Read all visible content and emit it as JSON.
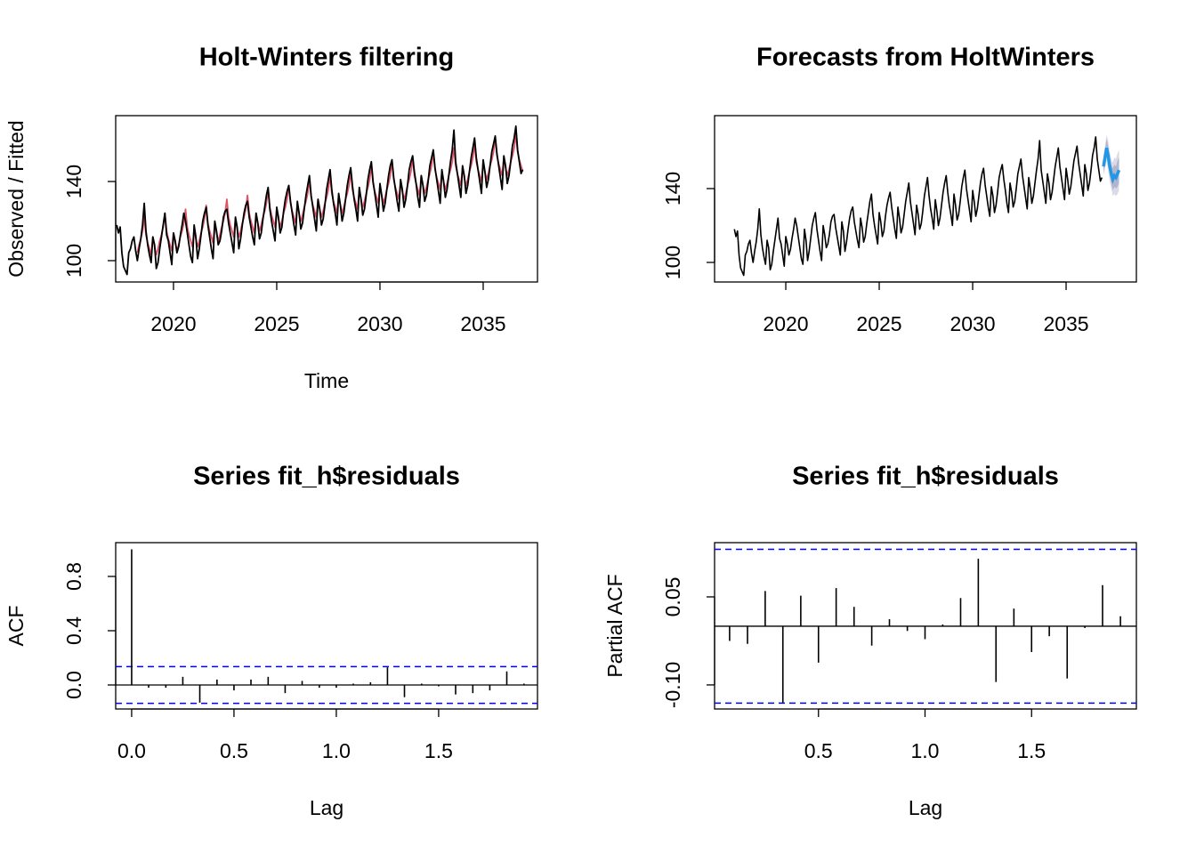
{
  "chart_data": [
    {
      "type": "line",
      "title": "Holt-Winters filtering",
      "xlabel": "Time",
      "ylabel": "Observed / Fitted",
      "xlim": [
        2017.2,
        2037.63
      ],
      "ylim": [
        89.2,
        173.3
      ],
      "xticks": [
        2020,
        2025,
        2030,
        2035
      ],
      "yticks": [
        100,
        140
      ],
      "series": [
        {
          "color": "#000000",
          "start": 2017.25,
          "frequency": 12,
          "values": [
            118,
            114,
            117,
            104,
            97,
            95,
            93,
            104,
            106,
            110,
            112,
            105,
            100,
            106,
            111,
            118,
            129,
            115,
            108,
            103,
            99,
            112,
            108,
            96,
            99,
            106,
            112,
            118,
            124,
            113,
            110,
            104,
            98,
            114,
            110,
            104,
            107,
            113,
            118,
            124,
            120,
            114,
            108,
            102,
            99,
            118,
            112,
            101,
            106,
            113,
            120,
            124,
            127,
            118,
            112,
            106,
            101,
            120,
            115,
            108,
            110,
            115,
            122,
            125,
            126,
            119,
            114,
            109,
            104,
            122,
            117,
            106,
            111,
            118,
            124,
            128,
            130,
            122,
            117,
            112,
            108,
            124,
            119,
            111,
            114,
            121,
            127,
            133,
            137,
            126,
            120,
            115,
            110,
            127,
            122,
            114,
            117,
            125,
            131,
            135,
            138,
            130,
            124,
            118,
            113,
            130,
            124,
            116,
            119,
            126,
            133,
            138,
            143,
            133,
            127,
            121,
            115,
            131,
            126,
            118,
            121,
            128,
            136,
            141,
            146,
            136,
            129,
            124,
            118,
            134,
            128,
            120,
            124,
            131,
            138,
            143,
            147,
            138,
            131,
            126,
            120,
            137,
            131,
            123,
            126,
            133,
            141,
            146,
            150,
            140,
            134,
            128,
            122,
            139,
            133,
            125,
            129,
            136,
            143,
            148,
            151,
            142,
            136,
            130,
            125,
            141,
            136,
            127,
            131,
            138,
            146,
            150,
            153,
            145,
            139,
            132,
            127,
            143,
            138,
            130,
            133,
            140,
            148,
            152,
            156,
            147,
            141,
            135,
            129,
            146,
            140,
            132,
            136,
            143,
            150,
            156,
            166,
            150,
            144,
            138,
            132,
            148,
            143,
            134,
            138,
            145,
            152,
            157,
            162,
            152,
            146,
            140,
            134,
            151,
            145,
            137,
            141,
            148,
            155,
            159,
            163,
            154,
            148,
            142,
            136,
            153,
            148,
            139,
            143,
            150,
            158,
            162,
            168,
            156,
            150,
            144,
            146
          ]
        },
        {
          "color": "#DF536B",
          "start": 2018.25,
          "frequency": 12,
          "values": [
            104,
            108,
            111,
            115,
            122,
            113,
            109,
            106,
            103,
            112,
            107,
            103,
            106,
            110,
            113,
            117,
            124,
            115,
            111,
            108,
            105,
            114,
            109,
            105,
            108,
            112,
            115,
            119,
            126,
            117,
            113,
            110,
            107,
            116,
            111,
            107,
            110,
            114,
            117,
            121,
            128,
            119,
            115,
            112,
            109,
            119,
            114,
            110,
            113,
            117,
            120,
            124,
            131,
            122,
            118,
            115,
            112,
            121,
            116,
            112,
            115,
            119,
            122,
            126,
            133,
            124,
            120,
            117,
            114,
            124,
            119,
            115,
            118,
            122,
            125,
            129,
            136,
            127,
            123,
            120,
            117,
            126,
            121,
            117,
            120,
            124,
            127,
            131,
            138,
            129,
            125,
            122,
            119,
            129,
            124,
            120,
            123,
            127,
            130,
            134,
            141,
            132,
            128,
            125,
            122,
            131,
            126,
            122,
            125,
            129,
            132,
            136,
            143,
            134,
            130,
            127,
            124,
            133,
            128,
            124,
            127,
            131,
            134,
            138,
            145,
            136,
            132,
            129,
            126,
            136,
            131,
            127,
            130,
            134,
            137,
            141,
            148,
            139,
            135,
            132,
            129,
            138,
            133,
            129,
            132,
            136,
            139,
            143,
            150,
            141,
            137,
            134,
            131,
            140,
            135,
            131,
            134,
            138,
            141,
            145,
            152,
            143,
            139,
            136,
            133,
            143,
            138,
            134,
            137,
            141,
            144,
            148,
            155,
            146,
            142,
            139,
            136,
            145,
            140,
            136,
            139,
            143,
            146,
            150,
            157,
            148,
            144,
            141,
            138,
            147,
            142,
            138,
            141,
            145,
            148,
            152,
            159,
            150,
            146,
            143,
            140,
            150,
            145,
            141,
            144,
            148,
            151,
            155,
            162,
            153,
            149,
            146,
            143,
            152,
            147,
            143,
            146,
            150,
            153,
            157,
            164,
            155,
            151,
            148,
            145
          ]
        }
      ]
    },
    {
      "type": "forecast",
      "title": "Forecasts from HoltWinters",
      "xlim": [
        2016.19,
        2038.76
      ],
      "ylim": [
        89.4,
        179.5
      ],
      "xticks": [
        2020,
        2025,
        2030,
        2035
      ],
      "yticks": [
        100,
        140
      ],
      "forecast": {
        "start": 2037.0,
        "frequency": 12,
        "color": "#2297E6",
        "band80_color": "#B1B5CE",
        "band95_color": "#DBDBE8",
        "mean": [
          152,
          157,
          162,
          158,
          152,
          148,
          145,
          147,
          146,
          148,
          150
        ],
        "lower80": [
          149,
          153,
          157,
          153,
          147,
          143,
          139,
          141,
          140,
          141,
          143
        ],
        "upper80": [
          155,
          161,
          167,
          163,
          157,
          153,
          151,
          153,
          152,
          155,
          157
        ],
        "lower95": [
          147,
          151,
          155,
          150,
          144,
          140,
          136,
          137,
          136,
          137,
          139
        ],
        "upper95": [
          157,
          163,
          169,
          166,
          160,
          156,
          154,
          157,
          156,
          159,
          161
        ]
      }
    },
    {
      "type": "acf",
      "title": "Series  fit_h$residuals",
      "xlabel": "Lag",
      "ylabel": "ACF",
      "xlim": [
        -0.078,
        1.983
      ],
      "ylim": [
        -0.177,
        1.049
      ],
      "xticks": [
        {
          "value": 0,
          "label": "0.0"
        },
        0.5,
        {
          "value": 1,
          "label": "1.0"
        },
        1.5
      ],
      "yticks": [
        {
          "value": 0,
          "label": "0.0"
        },
        0.4,
        0.8
      ],
      "ci": 0.135,
      "ci_color": "#0000FF",
      "lags": [
        0,
        0.083,
        0.167,
        0.25,
        0.333,
        0.417,
        0.5,
        0.583,
        0.667,
        0.75,
        0.833,
        0.917,
        1,
        1.083,
        1.167,
        1.25,
        1.333,
        1.417,
        1.5,
        1.583,
        1.667,
        1.75,
        1.833,
        1.917
      ],
      "values": [
        1.0,
        -0.02,
        -0.02,
        0.06,
        -0.13,
        0.04,
        -0.04,
        0.04,
        0.06,
        -0.06,
        0.03,
        -0.02,
        -0.02,
        0.01,
        0.02,
        0.13,
        -0.09,
        0.01,
        -0.01,
        -0.07,
        -0.06,
        -0.04,
        0.1,
        0.01
      ]
    },
    {
      "type": "pacf",
      "title": "Series  fit_h$residuals",
      "xlabel": "Lag",
      "ylabel": "Partial ACF",
      "xlim": [
        0.0125,
        1.9917
      ],
      "ylim": [
        -0.141,
        0.1424
      ],
      "xticks": [
        0.5,
        {
          "value": 1,
          "label": "1.0"
        },
        1.5
      ],
      "yticks": [
        {
          "value": -0.1,
          "label": "-0.10"
        },
        0.05
      ],
      "ci": 0.131,
      "ci_color": "#0000FF",
      "lags": [
        0.083,
        0.167,
        0.25,
        0.333,
        0.417,
        0.5,
        0.583,
        0.667,
        0.75,
        0.833,
        0.917,
        1,
        1.083,
        1.167,
        1.25,
        1.333,
        1.417,
        1.5,
        1.583,
        1.667,
        1.75,
        1.833,
        1.917
      ],
      "values": [
        -0.025,
        -0.03,
        0.06,
        -0.13,
        0.052,
        -0.062,
        0.065,
        0.033,
        -0.033,
        0.012,
        -0.008,
        -0.022,
        0.003,
        0.048,
        0.115,
        -0.095,
        0.03,
        -0.044,
        -0.017,
        -0.089,
        -0.003,
        0.07,
        0.017
      ]
    }
  ]
}
